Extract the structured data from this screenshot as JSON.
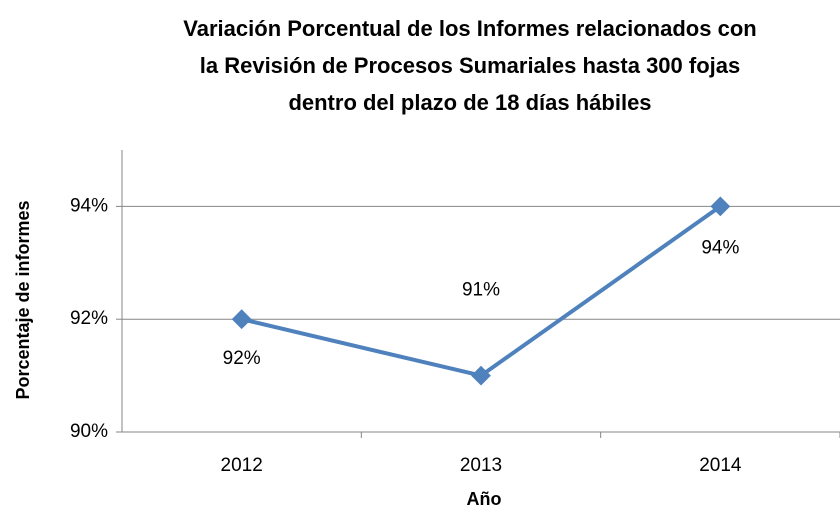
{
  "chart_data": {
    "type": "line",
    "title": [
      "Variación Porcentual de los Informes relacionados con",
      "la Revisión de Procesos Sumariales hasta 300 fojas",
      "dentro del plazo de 18 días hábiles"
    ],
    "x_label": "Año",
    "y_label": "Porcentaje de informes",
    "categories": [
      "2012",
      "2013",
      "2014"
    ],
    "series": [
      {
        "name": "Porcentaje de informes",
        "color": "#4f81bd",
        "values": [
          92,
          91,
          94
        ],
        "value_labels": [
          "92%",
          "91%",
          "94%"
        ]
      }
    ],
    "ylim": [
      90,
      95
    ],
    "yticks": [
      {
        "value": 90,
        "label": "90%"
      },
      {
        "value": 92,
        "label": "92%"
      },
      {
        "value": 94,
        "label": "94%"
      }
    ],
    "grid": true
  }
}
